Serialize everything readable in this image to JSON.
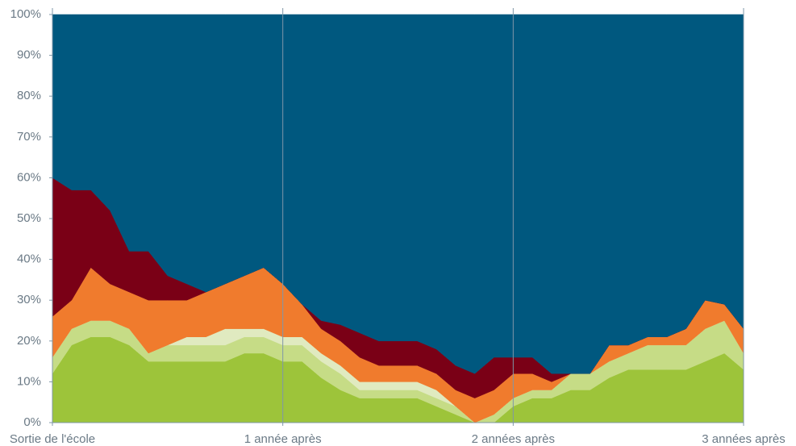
{
  "chart_data": {
    "type": "stacked_area",
    "x": [
      0,
      1,
      2,
      3,
      4,
      5,
      6,
      7,
      8,
      9,
      10,
      11,
      12,
      13,
      14,
      15,
      16,
      17,
      18,
      19,
      20,
      21,
      22,
      23,
      24,
      25,
      26,
      27,
      28,
      29,
      30,
      31,
      32,
      33,
      34,
      35,
      36
    ],
    "xlim": [
      0,
      36
    ],
    "xticks": [
      {
        "value": 0,
        "label": "Sortie de l'école"
      },
      {
        "value": 12,
        "label": "1 année après"
      },
      {
        "value": 24,
        "label": "2 années après"
      },
      {
        "value": 36,
        "label": "3 années après"
      }
    ],
    "ylim": [
      0,
      100
    ],
    "yticks": [
      {
        "value": 0,
        "label": "0%"
      },
      {
        "value": 10,
        "label": "10%"
      },
      {
        "value": 20,
        "label": "20%"
      },
      {
        "value": 30,
        "label": "30%"
      },
      {
        "value": 40,
        "label": "40%"
      },
      {
        "value": 50,
        "label": "50%"
      },
      {
        "value": 60,
        "label": "60%"
      },
      {
        "value": 70,
        "label": "70%"
      },
      {
        "value": 80,
        "label": "80%"
      },
      {
        "value": 90,
        "label": "90%"
      },
      {
        "value": 100,
        "label": "100%"
      }
    ],
    "series": [
      {
        "color": "#9dc43a",
        "values": [
          12,
          19,
          21,
          21,
          19,
          15,
          15,
          15,
          15,
          15,
          17,
          17,
          15,
          15,
          11,
          8,
          6,
          6,
          6,
          6,
          4,
          2,
          0,
          0,
          4,
          6,
          6,
          8,
          8,
          11,
          13,
          13,
          13,
          13,
          15,
          17,
          13
        ]
      },
      {
        "color": "#c6dc86",
        "values": [
          4,
          4,
          4,
          4,
          4,
          2,
          4,
          4,
          4,
          4,
          4,
          4,
          4,
          4,
          4,
          4,
          2,
          2,
          2,
          2,
          2,
          2,
          0,
          2,
          2,
          2,
          2,
          4,
          4,
          4,
          4,
          6,
          6,
          6,
          8,
          8,
          4
        ]
      },
      {
        "color": "#e0eac0",
        "values": [
          0,
          0,
          0,
          0,
          0,
          0,
          0,
          2,
          2,
          4,
          2,
          2,
          2,
          2,
          2,
          2,
          2,
          2,
          2,
          2,
          2,
          0,
          0,
          0,
          0,
          0,
          0,
          0,
          0,
          0,
          0,
          0,
          0,
          0,
          0,
          0,
          0
        ]
      },
      {
        "color": "#f07b2d",
        "values": [
          10,
          7,
          13,
          9,
          9,
          13,
          11,
          9,
          11,
          11,
          13,
          15,
          13,
          8,
          6,
          6,
          6,
          4,
          4,
          4,
          4,
          4,
          6,
          6,
          6,
          4,
          2,
          0,
          0,
          4,
          2,
          2,
          2,
          4,
          7,
          4,
          6
        ]
      },
      {
        "color": "#7a0016",
        "values": [
          34,
          27,
          19,
          18,
          10,
          12,
          6,
          4,
          0,
          0,
          0,
          0,
          0,
          0,
          2,
          4,
          6,
          6,
          6,
          6,
          6,
          6,
          6,
          8,
          4,
          4,
          2,
          0,
          0,
          0,
          0,
          0,
          0,
          0,
          0,
          0,
          0
        ]
      },
      {
        "color": "#00587f",
        "values": [
          40,
          43,
          43,
          48,
          58,
          58,
          64,
          66,
          68,
          66,
          64,
          62,
          66,
          71,
          75,
          76,
          78,
          80,
          80,
          80,
          82,
          86,
          88,
          84,
          84,
          84,
          88,
          88,
          88,
          81,
          81,
          79,
          79,
          77,
          70,
          71,
          77
        ]
      }
    ]
  }
}
